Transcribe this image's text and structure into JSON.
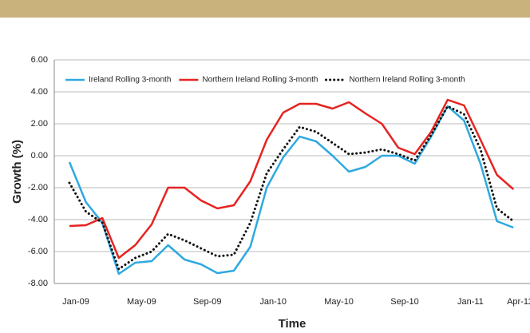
{
  "chart_data": {
    "type": "line",
    "ylabel": "Growth (%)",
    "xlabel": "Time",
    "categories": [
      "Jan-09",
      null,
      null,
      null,
      "May-09",
      null,
      null,
      null,
      "Sep-09",
      null,
      null,
      null,
      "Jan-10",
      null,
      null,
      null,
      "May-10",
      null,
      null,
      null,
      "Sep-10",
      null,
      null,
      null,
      "Jan-11",
      null,
      null,
      "Apr-11"
    ],
    "series": [
      {
        "name": "Ireland Rolling 3-month",
        "color": "#2fa9e0",
        "line_style": "solid",
        "values": [
          -0.4,
          -2.9,
          -4.2,
          -7.4,
          -6.7,
          -6.6,
          -5.6,
          -6.5,
          -6.8,
          -7.35,
          -7.2,
          -5.7,
          -2.0,
          -0.1,
          1.2,
          0.9,
          0.0,
          -1.0,
          -0.7,
          0.0,
          0.0,
          -0.5,
          1.2,
          3.1,
          2.2,
          -0.5,
          -4.1,
          -4.5
        ]
      },
      {
        "name": "Northern Ireland Rolling 3-month",
        "color": "#e52421",
        "line_style": "solid",
        "values": [
          -4.4,
          -4.35,
          -3.9,
          -6.4,
          -5.6,
          -4.3,
          -2.0,
          -2.0,
          -2.8,
          -3.3,
          -3.1,
          -1.6,
          1.0,
          2.7,
          3.25,
          3.25,
          2.95,
          3.35,
          2.65,
          2.0,
          0.5,
          0.1,
          1.5,
          3.5,
          3.15,
          1.0,
          -1.2,
          -2.1
        ]
      },
      {
        "name": "Northern Ireland Rolling 3-month",
        "color": "#111111",
        "line_style": "dotted",
        "values": [
          -1.7,
          -3.5,
          -4.2,
          -7.1,
          -6.4,
          -6.0,
          -4.9,
          -5.3,
          -5.8,
          -6.3,
          -6.2,
          -4.2,
          -1.1,
          0.4,
          1.8,
          1.5,
          0.8,
          0.1,
          0.2,
          0.4,
          0.1,
          -0.3,
          1.3,
          3.1,
          2.6,
          0.4,
          -3.3,
          -4.1
        ]
      }
    ],
    "ylim": [
      -8,
      6
    ],
    "yticks": [
      {
        "value": -8,
        "label": "-8.00"
      },
      {
        "value": -6,
        "label": "-6.00"
      },
      {
        "value": -4,
        "label": "-4.00"
      },
      {
        "value": -2,
        "label": "-2.00"
      },
      {
        "value": 0,
        "label": "0.00"
      },
      {
        "value": 2,
        "label": "2.00"
      },
      {
        "value": 4,
        "label": "4.00"
      },
      {
        "value": 6,
        "label": "6.00"
      }
    ],
    "grid": true,
    "legend": "top"
  }
}
